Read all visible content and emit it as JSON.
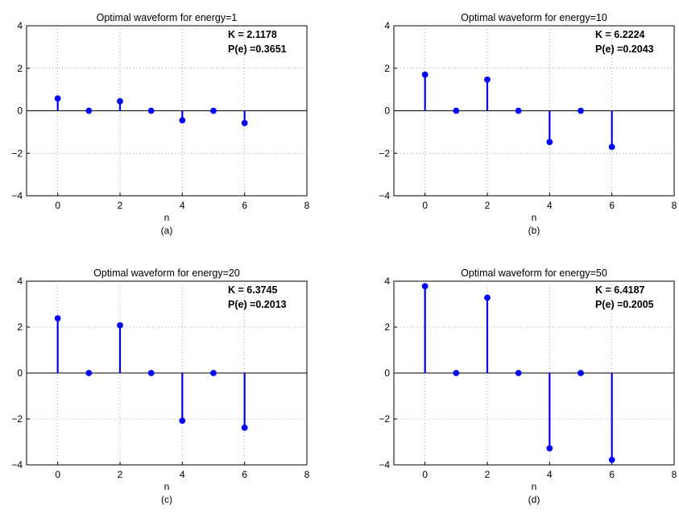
{
  "chart_data": [
    {
      "type": "stem",
      "title": "Optimal waveform for energy=1",
      "xlabel": "n",
      "sublabel": "(a)",
      "annotation": [
        "K = 2.1178",
        "P(e) =0.3651"
      ],
      "x": [
        0,
        1,
        2,
        3,
        4,
        5,
        6
      ],
      "values": [
        0.58,
        0,
        0.45,
        0,
        -0.45,
        0,
        -0.58
      ],
      "xlim": [
        -1,
        8
      ],
      "ylim": [
        -4,
        4
      ],
      "xticks": [
        0,
        2,
        4,
        6,
        8
      ],
      "yticks": [
        -4,
        -2,
        0,
        2,
        4
      ],
      "grid": true,
      "color": "#0000ff"
    },
    {
      "type": "stem",
      "title": "Optimal waveform for energy=10",
      "xlabel": "n",
      "sublabel": "(b)",
      "annotation": [
        "K = 6.2224",
        "P(e) =0.2043"
      ],
      "x": [
        0,
        1,
        2,
        3,
        4,
        5,
        6
      ],
      "values": [
        1.7,
        0,
        1.47,
        0,
        -1.47,
        0,
        -1.7
      ],
      "xlim": [
        -1,
        8
      ],
      "ylim": [
        -4,
        4
      ],
      "xticks": [
        0,
        2,
        4,
        6,
        8
      ],
      "yticks": [
        -4,
        -2,
        0,
        2,
        4
      ],
      "grid": true,
      "color": "#0000ff"
    },
    {
      "type": "stem",
      "title": "Optimal waveform for energy=20",
      "xlabel": "n",
      "sublabel": "(c)",
      "annotation": [
        "K = 6.3745",
        "P(e) =0.2013"
      ],
      "x": [
        0,
        1,
        2,
        3,
        4,
        5,
        6
      ],
      "values": [
        2.38,
        0,
        2.08,
        0,
        -2.08,
        0,
        -2.38
      ],
      "xlim": [
        -1,
        8
      ],
      "ylim": [
        -4,
        4
      ],
      "xticks": [
        0,
        2,
        4,
        6,
        8
      ],
      "yticks": [
        -4,
        -2,
        0,
        2,
        4
      ],
      "grid": true,
      "color": "#0000ff"
    },
    {
      "type": "stem",
      "title": "Optimal waveform for energy=50",
      "xlabel": "n",
      "sublabel": "(d)",
      "annotation": [
        "K = 6.4187",
        "P(e) =0.2005"
      ],
      "x": [
        0,
        1,
        2,
        3,
        4,
        5,
        6
      ],
      "values": [
        3.78,
        0,
        3.28,
        0,
        -3.28,
        0,
        -3.78
      ],
      "xlim": [
        -1,
        8
      ],
      "ylim": [
        -4,
        4
      ],
      "xticks": [
        0,
        2,
        4,
        6,
        8
      ],
      "yticks": [
        -4,
        -2,
        0,
        2,
        4
      ],
      "grid": true,
      "color": "#0000ff"
    }
  ]
}
